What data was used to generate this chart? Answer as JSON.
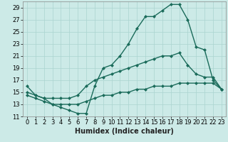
{
  "xlabel": "Humidex (Indice chaleur)",
  "bg_color": "#cceae7",
  "grid_color": "#aad4d0",
  "line_color": "#1a6b5a",
  "xlim": [
    -0.5,
    23.5
  ],
  "ylim": [
    11,
    30
  ],
  "xticks": [
    0,
    1,
    2,
    3,
    4,
    5,
    6,
    7,
    8,
    9,
    10,
    11,
    12,
    13,
    14,
    15,
    16,
    17,
    18,
    19,
    20,
    21,
    22,
    23
  ],
  "yticks": [
    11,
    13,
    15,
    17,
    19,
    21,
    23,
    25,
    27,
    29
  ],
  "line1_x": [
    0,
    1,
    2,
    3,
    4,
    5,
    6,
    7,
    8,
    9,
    10,
    11,
    12,
    13,
    14,
    15,
    16,
    17,
    18,
    19,
    20,
    21,
    22,
    23
  ],
  "line1_y": [
    16,
    14.5,
    14,
    13,
    12.5,
    12,
    11.5,
    11.5,
    16,
    19,
    19.5,
    21,
    23,
    25.5,
    27.5,
    27.5,
    28.5,
    29.5,
    29.5,
    27,
    22.5,
    22,
    17,
    15.5
  ],
  "line2_x": [
    0,
    1,
    2,
    3,
    4,
    5,
    6,
    7,
    8,
    9,
    10,
    11,
    12,
    13,
    14,
    15,
    16,
    17,
    18,
    19,
    20,
    21,
    22,
    23
  ],
  "line2_y": [
    15,
    14.5,
    14,
    14,
    14,
    14,
    14.5,
    16,
    17,
    17.5,
    18,
    18.5,
    19,
    19.5,
    20,
    20.5,
    21,
    21,
    21.5,
    19.5,
    18,
    17.5,
    17.5,
    15.5
  ],
  "line3_x": [
    0,
    1,
    2,
    3,
    4,
    5,
    6,
    7,
    8,
    9,
    10,
    11,
    12,
    13,
    14,
    15,
    16,
    17,
    18,
    19,
    20,
    21,
    22,
    23
  ],
  "line3_y": [
    14.5,
    14,
    13.5,
    13,
    13,
    13,
    13,
    13.5,
    14,
    14.5,
    14.5,
    15,
    15,
    15.5,
    15.5,
    16,
    16,
    16,
    16.5,
    16.5,
    16.5,
    16.5,
    16.5,
    15.5
  ],
  "marker_size": 2.5,
  "line_width": 1.0,
  "xlabel_fontsize": 7,
  "tick_fontsize": 6
}
